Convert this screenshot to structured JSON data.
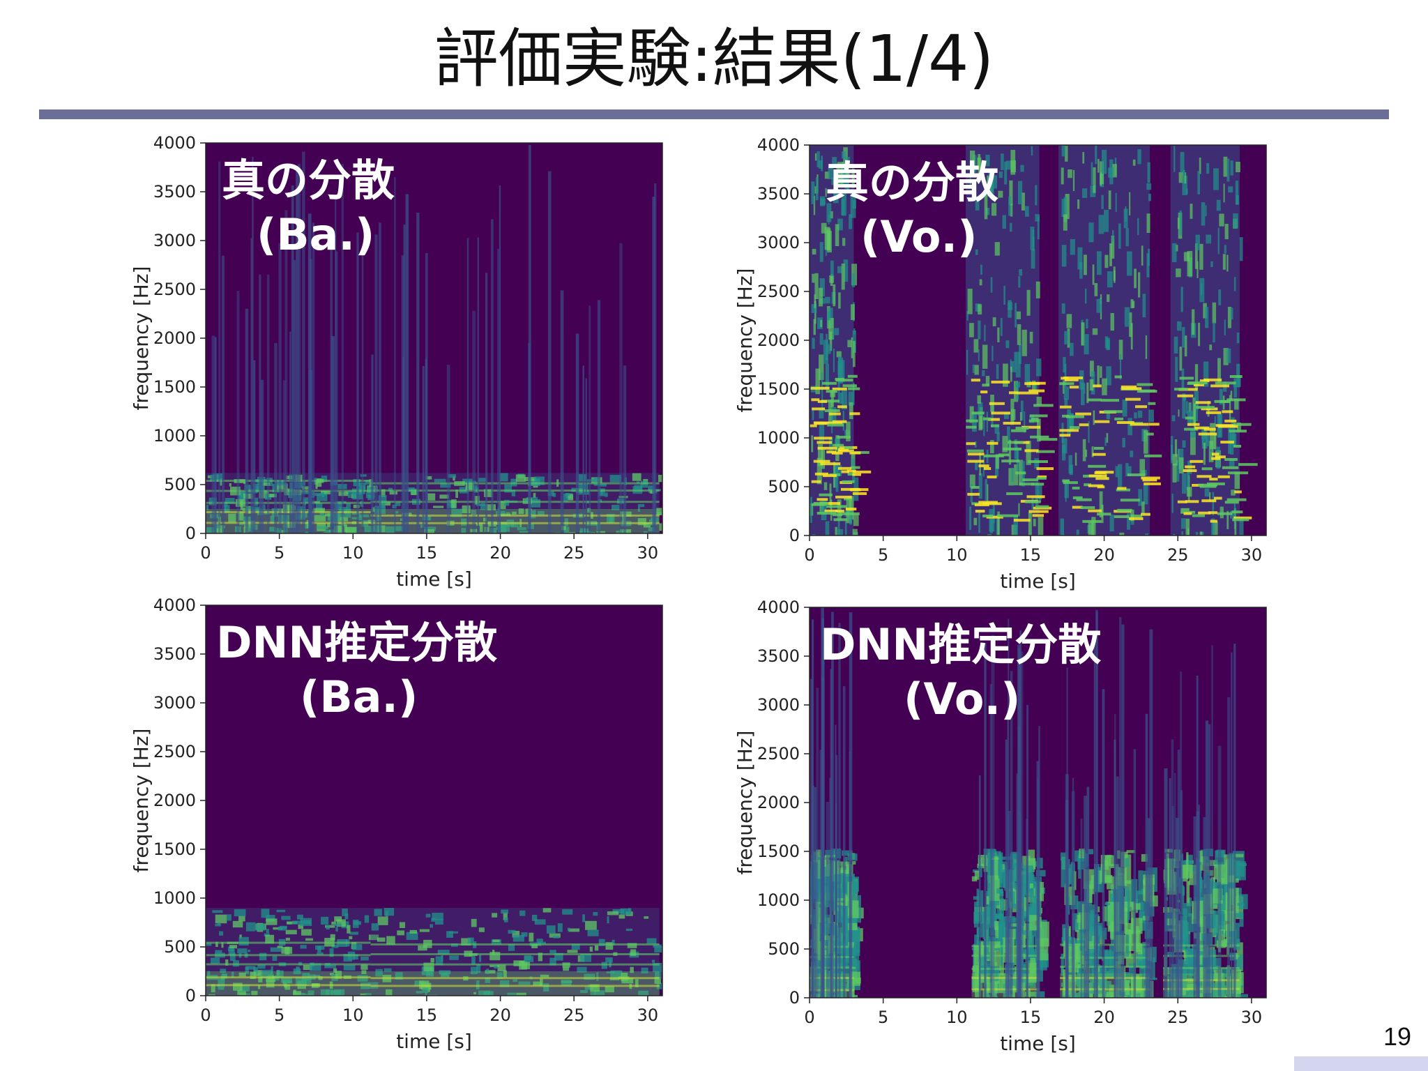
{
  "slide": {
    "title": "評価実験:結果(1/4)",
    "page_number": "19"
  },
  "colors": {
    "rule": "#6b6f98",
    "plot_bg": "#440154",
    "viridis_low": "#3b528b",
    "viridis_mid": "#21918c",
    "viridis_high": "#5ec962",
    "viridis_peak": "#fde725"
  },
  "panels": [
    {
      "overlay_line1": "真の分散",
      "overlay_line2": "(Ba.)"
    },
    {
      "overlay_line1": "真の分散",
      "overlay_line2": "(Vo.)"
    },
    {
      "overlay_line1": "DNN推定分散",
      "overlay_line2": "(Ba.)"
    },
    {
      "overlay_line1": "DNN推定分散",
      "overlay_line2": "(Vo.)"
    }
  ],
  "chart_data": [
    {
      "type": "heatmap",
      "title": "",
      "xlabel": "time [s]",
      "ylabel": "frequency [Hz]",
      "xlim": [
        0,
        31
      ],
      "ylim": [
        0,
        4000
      ],
      "xticks": [
        0,
        5,
        10,
        15,
        20,
        25,
        30
      ],
      "yticks": [
        0,
        500,
        1000,
        1500,
        2000,
        2500,
        3000,
        3500,
        4000
      ],
      "colormap": "viridis",
      "source": "true variance",
      "instrument": "bass"
    },
    {
      "type": "heatmap",
      "title": "",
      "xlabel": "time [s]",
      "ylabel": "frequency [Hz]",
      "xlim": [
        0,
        31
      ],
      "ylim": [
        0,
        4000
      ],
      "xticks": [
        0,
        5,
        10,
        15,
        20,
        25,
        30
      ],
      "yticks": [
        0,
        500,
        1000,
        1500,
        2000,
        2500,
        3000,
        3500,
        4000
      ],
      "colormap": "viridis",
      "source": "true variance",
      "instrument": "vocals"
    },
    {
      "type": "heatmap",
      "title": "",
      "xlabel": "time [s]",
      "ylabel": "frequency [Hz]",
      "xlim": [
        0,
        31
      ],
      "ylim": [
        0,
        4000
      ],
      "xticks": [
        0,
        5,
        10,
        15,
        20,
        25,
        30
      ],
      "yticks": [
        0,
        500,
        1000,
        1500,
        2000,
        2500,
        3000,
        3500,
        4000
      ],
      "colormap": "viridis",
      "source": "DNN estimated variance",
      "instrument": "bass"
    },
    {
      "type": "heatmap",
      "title": "",
      "xlabel": "time [s]",
      "ylabel": "frequency [Hz]",
      "xlim": [
        0,
        31
      ],
      "ylim": [
        0,
        4000
      ],
      "xticks": [
        0,
        5,
        10,
        15,
        20,
        25,
        30
      ],
      "yticks": [
        0,
        500,
        1000,
        1500,
        2000,
        2500,
        3000,
        3500,
        4000
      ],
      "colormap": "viridis",
      "source": "DNN estimated variance",
      "instrument": "vocals"
    }
  ]
}
